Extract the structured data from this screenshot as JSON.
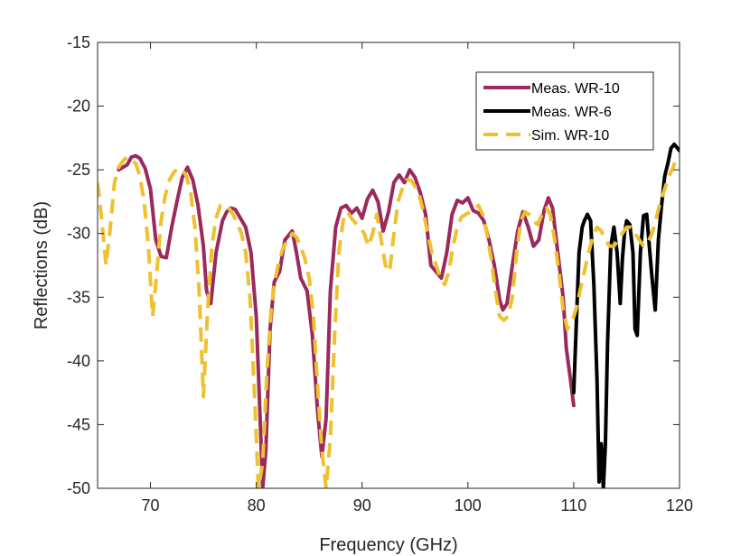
{
  "chart_data": {
    "type": "line",
    "title": "",
    "xlabel": "Frequency (GHz)",
    "ylabel": "Reflections (dB)",
    "xlim": [
      65,
      120
    ],
    "ylim": [
      -50,
      -15
    ],
    "xticks": [
      70,
      80,
      90,
      100,
      110,
      120
    ],
    "yticks": [
      -50,
      -45,
      -40,
      -35,
      -30,
      -25,
      -20,
      -15
    ],
    "xtick_labels": [
      "70",
      "80",
      "90",
      "100",
      "110",
      "120"
    ],
    "ytick_labels": [
      "-50",
      "-45",
      "-40",
      "-35",
      "-30",
      "-25",
      "-20",
      "-15"
    ],
    "grid": false,
    "legend_position": "top-right",
    "series": [
      {
        "name": "Meas. WR-10",
        "color": "#9b2a5c",
        "style": "solid",
        "x": [
          67.0,
          67.8,
          68.2,
          68.6,
          69.0,
          69.5,
          70.0,
          70.5,
          71.0,
          71.5,
          72.0,
          72.5,
          73.0,
          73.5,
          74.0,
          74.5,
          75.0,
          75.3,
          75.7,
          76.2,
          76.8,
          77.2,
          77.6,
          78.0,
          78.5,
          79.0,
          79.5,
          80.0,
          80.3,
          80.6,
          80.9,
          81.3,
          81.7,
          82.2,
          82.7,
          83.0,
          83.4,
          83.8,
          84.2,
          84.8,
          85.3,
          85.8,
          86.2,
          86.6,
          87.0,
          87.5,
          88.0,
          88.5,
          89.0,
          89.5,
          90.0,
          90.5,
          91.0,
          91.5,
          92.0,
          92.5,
          93.0,
          93.5,
          94.0,
          94.5,
          95.0,
          95.5,
          96.0,
          96.5,
          97.0,
          97.5,
          98.0,
          98.5,
          99.0,
          99.5,
          100.0,
          100.5,
          101.0,
          101.5,
          102.0,
          102.5,
          103.0,
          103.3,
          103.7,
          104.2,
          104.7,
          105.2,
          105.7,
          106.2,
          106.7,
          107.2,
          107.6,
          108.0,
          108.5,
          109.0,
          109.3,
          109.7,
          110.0
        ],
        "y": [
          -25.0,
          -24.6,
          -24.0,
          -23.9,
          -24.1,
          -24.9,
          -26.5,
          -30.5,
          -31.8,
          -31.9,
          -29.5,
          -27.5,
          -25.6,
          -24.8,
          -25.8,
          -27.8,
          -31.0,
          -34.5,
          -35.5,
          -31.5,
          -29.0,
          -28.3,
          -28.0,
          -28.1,
          -28.8,
          -29.5,
          -31.5,
          -36.5,
          -43.0,
          -50.0,
          -47.0,
          -37.5,
          -33.8,
          -33.0,
          -30.5,
          -30.2,
          -29.8,
          -31.5,
          -33.5,
          -34.5,
          -38.0,
          -44.0,
          -47.5,
          -44.5,
          -34.5,
          -29.5,
          -28.0,
          -27.8,
          -28.4,
          -28.0,
          -28.8,
          -27.3,
          -26.6,
          -27.5,
          -29.8,
          -28.3,
          -26.0,
          -25.4,
          -26.0,
          -25.0,
          -25.6,
          -26.8,
          -28.5,
          -32.5,
          -33.0,
          -33.5,
          -31.5,
          -28.5,
          -27.4,
          -27.6,
          -27.2,
          -28.2,
          -28.4,
          -29.0,
          -30.5,
          -32.5,
          -35.2,
          -36.0,
          -35.5,
          -32.5,
          -29.8,
          -28.3,
          -29.5,
          -31.0,
          -30.5,
          -28.2,
          -27.2,
          -28.0,
          -31.5,
          -35.0,
          -39.0,
          -41.5,
          -43.5
        ]
      },
      {
        "name": "Meas. WR-6",
        "color": "#000000",
        "style": "solid",
        "x": [
          110.0,
          110.2,
          110.5,
          110.8,
          111.0,
          111.3,
          111.6,
          111.9,
          112.2,
          112.4,
          112.6,
          112.8,
          113.0,
          113.2,
          113.5,
          113.8,
          114.1,
          114.4,
          114.6,
          114.8,
          115.0,
          115.3,
          115.6,
          115.8,
          116.0,
          116.3,
          116.6,
          116.9,
          117.1,
          117.4,
          117.7,
          118.0,
          118.3,
          118.6,
          118.9,
          119.2,
          119.5,
          119.8,
          120.0
        ],
        "y": [
          -42.5,
          -38.0,
          -31.5,
          -29.5,
          -29.0,
          -28.5,
          -29.0,
          -34.0,
          -41.5,
          -49.5,
          -46.5,
          -50.0,
          -46.5,
          -38.5,
          -31.0,
          -29.5,
          -31.5,
          -35.5,
          -32.0,
          -30.0,
          -29.0,
          -29.3,
          -31.5,
          -37.5,
          -38.0,
          -31.5,
          -28.6,
          -28.5,
          -30.5,
          -33.5,
          -36.0,
          -30.5,
          -27.8,
          -25.5,
          -24.5,
          -23.3,
          -23.0,
          -23.3,
          -23.5
        ]
      },
      {
        "name": "Sim. WR-10",
        "color": "#eec130",
        "style": "dashed",
        "x": [
          65.0,
          65.4,
          65.8,
          66.2,
          66.6,
          67.0,
          67.4,
          67.8,
          68.2,
          68.6,
          69.0,
          69.4,
          69.8,
          70.2,
          70.6,
          71.0,
          71.4,
          71.8,
          72.2,
          72.6,
          73.0,
          73.4,
          73.8,
          74.2,
          74.6,
          75.0,
          75.4,
          75.8,
          76.2,
          76.6,
          77.0,
          77.4,
          77.8,
          78.2,
          78.6,
          79.0,
          79.4,
          79.8,
          80.2,
          80.6,
          81.0,
          81.4,
          81.8,
          82.2,
          82.6,
          83.0,
          83.4,
          83.8,
          84.2,
          84.6,
          85.0,
          85.4,
          85.8,
          86.2,
          86.6,
          87.0,
          87.4,
          87.8,
          88.2,
          88.6,
          89.0,
          89.4,
          89.8,
          90.2,
          90.6,
          91.0,
          91.4,
          91.8,
          92.2,
          92.6,
          93.0,
          93.4,
          93.8,
          94.2,
          94.6,
          95.0,
          95.4,
          95.8,
          96.2,
          96.6,
          97.0,
          97.4,
          97.8,
          98.2,
          98.6,
          99.0,
          99.4,
          99.8,
          100.2,
          100.6,
          101.0,
          101.4,
          101.8,
          102.2,
          102.6,
          103.0,
          103.4,
          103.8,
          104.2,
          104.6,
          105.0,
          105.4,
          105.8,
          106.2,
          106.6,
          107.0,
          107.4,
          107.8,
          108.2,
          108.6,
          109.0,
          109.4,
          109.8,
          110.2,
          110.6,
          111.0,
          111.4,
          111.8,
          112.2,
          112.6,
          113.0,
          113.4,
          113.8,
          114.2,
          114.6,
          115.0,
          115.4,
          115.8,
          116.2,
          116.6,
          117.0,
          117.4,
          117.8,
          118.2,
          118.6,
          119.0,
          119.4,
          119.8
        ],
        "y": [
          -26.0,
          -29.0,
          -32.5,
          -29.5,
          -26.0,
          -24.8,
          -24.3,
          -24.0,
          -24.2,
          -24.5,
          -25.5,
          -27.5,
          -31.0,
          -36.5,
          -33.0,
          -29.0,
          -27.0,
          -25.8,
          -25.2,
          -24.9,
          -25.0,
          -25.5,
          -26.8,
          -29.5,
          -34.5,
          -42.8,
          -36.0,
          -31.0,
          -28.8,
          -27.8,
          -27.7,
          -28.0,
          -28.5,
          -29.2,
          -30.0,
          -31.5,
          -35.0,
          -42.0,
          -50.0,
          -48.0,
          -41.0,
          -36.0,
          -33.5,
          -32.0,
          -31.0,
          -30.5,
          -30.0,
          -30.3,
          -31.0,
          -32.0,
          -33.5,
          -36.5,
          -42.0,
          -47.0,
          -50.0,
          -46.0,
          -38.0,
          -31.5,
          -29.0,
          -28.3,
          -28.8,
          -29.2,
          -29.5,
          -30.0,
          -31.0,
          -30.0,
          -28.5,
          -30.5,
          -32.5,
          -33.0,
          -30.0,
          -27.5,
          -26.5,
          -25.8,
          -25.8,
          -26.3,
          -27.0,
          -28.3,
          -30.0,
          -31.5,
          -32.5,
          -33.5,
          -34.0,
          -33.0,
          -31.0,
          -29.5,
          -28.7,
          -28.5,
          -28.3,
          -28.0,
          -27.8,
          -28.5,
          -30.0,
          -32.0,
          -34.5,
          -36.5,
          -36.8,
          -36.5,
          -35.0,
          -31.5,
          -29.0,
          -28.3,
          -28.5,
          -29.0,
          -29.3,
          -28.5,
          -28.0,
          -28.5,
          -30.5,
          -33.0,
          -36.0,
          -37.5,
          -37.0,
          -36.0,
          -34.5,
          -33.0,
          -31.5,
          -30.3,
          -29.5,
          -29.8,
          -30.5,
          -31.0,
          -31.0,
          -30.5,
          -30.0,
          -29.5,
          -29.5,
          -30.0,
          -30.5,
          -31.0,
          -30.7,
          -30.0,
          -28.8,
          -27.5,
          -26.5,
          -25.5,
          -24.8,
          -23.8
        ]
      }
    ]
  }
}
